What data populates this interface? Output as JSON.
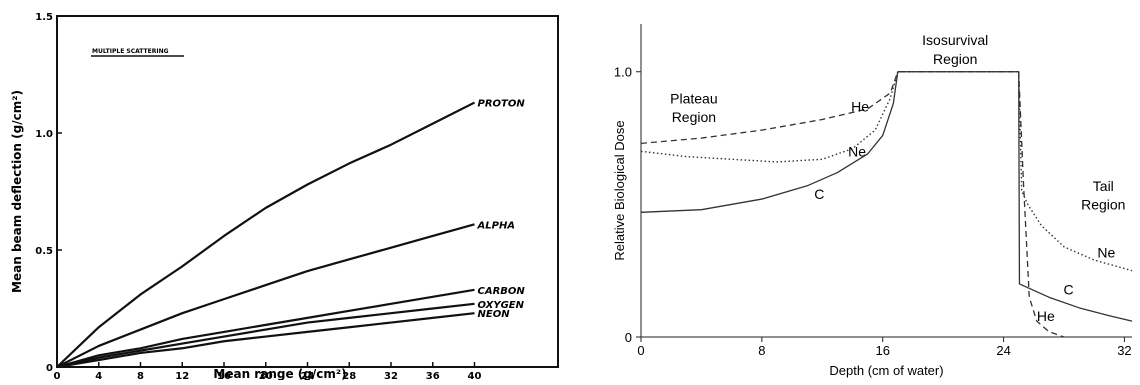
{
  "chart_data": [
    {
      "type": "line",
      "title": "",
      "inset_label": "MULTIPLE SCATTERING",
      "xlabel": "Mean range (g/cm²)",
      "ylabel": "Mean beam deflection (g/cm²)",
      "xlim": [
        0,
        48
      ],
      "ylim": [
        0,
        1.5
      ],
      "x_ticks": [
        0,
        4,
        8,
        12,
        16,
        20,
        24,
        28,
        32,
        36,
        40
      ],
      "x_tick_labels": [
        "0",
        "4",
        "8",
        "12",
        "16",
        "20",
        "24",
        "28",
        "32",
        "36",
        "40"
      ],
      "y_ticks": [
        0,
        0.5,
        1.0,
        1.5
      ],
      "y_tick_labels": [
        "0",
        "0.5",
        "1.0",
        "1.5"
      ],
      "grid": false,
      "series": [
        {
          "name": "PROTON",
          "x": [
            0,
            4,
            8,
            12,
            16,
            20,
            24,
            28,
            32,
            36,
            40
          ],
          "y": [
            0,
            0.17,
            0.31,
            0.43,
            0.56,
            0.68,
            0.78,
            0.87,
            0.95,
            1.04,
            1.13
          ]
        },
        {
          "name": "ALPHA",
          "x": [
            0,
            4,
            8,
            12,
            16,
            20,
            24,
            28,
            32,
            36,
            40
          ],
          "y": [
            0,
            0.09,
            0.16,
            0.23,
            0.29,
            0.35,
            0.41,
            0.46,
            0.51,
            0.56,
            0.61
          ]
        },
        {
          "name": "CARBON",
          "x": [
            0,
            4,
            8,
            12,
            16,
            20,
            24,
            28,
            32,
            36,
            40
          ],
          "y": [
            0,
            0.05,
            0.08,
            0.12,
            0.15,
            0.18,
            0.21,
            0.24,
            0.27,
            0.3,
            0.33
          ]
        },
        {
          "name": "OXYGEN",
          "x": [
            0,
            4,
            8,
            12,
            16,
            20,
            24,
            28,
            32,
            36,
            40
          ],
          "y": [
            0,
            0.04,
            0.07,
            0.1,
            0.13,
            0.16,
            0.19,
            0.21,
            0.23,
            0.25,
            0.27
          ]
        },
        {
          "name": "NEON",
          "x": [
            0,
            4,
            8,
            12,
            16,
            20,
            24,
            28,
            32,
            36,
            40
          ],
          "y": [
            0,
            0.03,
            0.06,
            0.08,
            0.11,
            0.13,
            0.15,
            0.17,
            0.19,
            0.21,
            0.23
          ]
        }
      ]
    },
    {
      "type": "line",
      "title": "",
      "xlabel": "Depth (cm of water)",
      "ylabel": "Relative Biological Dose",
      "xlim": [
        0,
        32.5
      ],
      "ylim": [
        0,
        1.18
      ],
      "x_ticks": [
        0,
        8,
        16,
        24,
        32
      ],
      "x_tick_labels": [
        "0",
        "8",
        "16",
        "24",
        "32"
      ],
      "y_ticks": [
        0,
        1.0
      ],
      "y_tick_labels": [
        "0",
        "1.0"
      ],
      "grid": false,
      "annotations": [
        {
          "text": "Plateau",
          "x": 3.5,
          "y": 0.88
        },
        {
          "text": "Region",
          "x": 3.5,
          "y": 0.81
        },
        {
          "text": "Isosurvival",
          "x": 20.8,
          "y": 1.1
        },
        {
          "text": "Region",
          "x": 20.8,
          "y": 1.03
        },
        {
          "text": "Tail",
          "x": 30.6,
          "y": 0.55
        },
        {
          "text": "Region",
          "x": 30.6,
          "y": 0.48
        }
      ],
      "series": [
        {
          "name": "He",
          "style": "dashed",
          "x": [
            0,
            4,
            8,
            12,
            15,
            16.5,
            17,
            25,
            25.3,
            25.7,
            26.2,
            27,
            28
          ],
          "y": [
            0.73,
            0.75,
            0.78,
            0.82,
            0.86,
            0.92,
            1.0,
            1.0,
            0.6,
            0.15,
            0.06,
            0.02,
            0.0
          ],
          "label_pos": {
            "x": 14.5,
            "y": 0.85
          }
        },
        {
          "name": "Ne",
          "style": "dotted",
          "x": [
            0,
            3,
            6,
            9,
            12,
            14,
            15.5,
            16.5,
            17,
            25,
            25.2,
            25.6,
            26.5,
            28,
            30,
            32.5
          ],
          "y": [
            0.7,
            0.68,
            0.67,
            0.66,
            0.67,
            0.71,
            0.78,
            0.9,
            1.0,
            1.0,
            0.55,
            0.5,
            0.42,
            0.34,
            0.29,
            0.25
          ],
          "label_pos": {
            "x": 14.3,
            "y": 0.68
          }
        },
        {
          "name": "C",
          "style": "solid",
          "x": [
            0,
            4,
            8,
            11,
            13,
            15,
            16,
            16.7,
            17,
            25,
            25.05,
            27,
            29,
            31,
            32.5
          ],
          "y": [
            0.47,
            0.48,
            0.52,
            0.57,
            0.62,
            0.69,
            0.76,
            0.88,
            1.0,
            1.0,
            0.2,
            0.15,
            0.11,
            0.08,
            0.06
          ],
          "label_pos": {
            "x": 11.8,
            "y": 0.52
          }
        }
      ],
      "extra_labels": [
        {
          "text": "Ne",
          "x": 30.8,
          "y": 0.3
        },
        {
          "text": "C",
          "x": 28.3,
          "y": 0.16
        },
        {
          "text": "He",
          "x": 26.8,
          "y": 0.06
        }
      ]
    }
  ]
}
